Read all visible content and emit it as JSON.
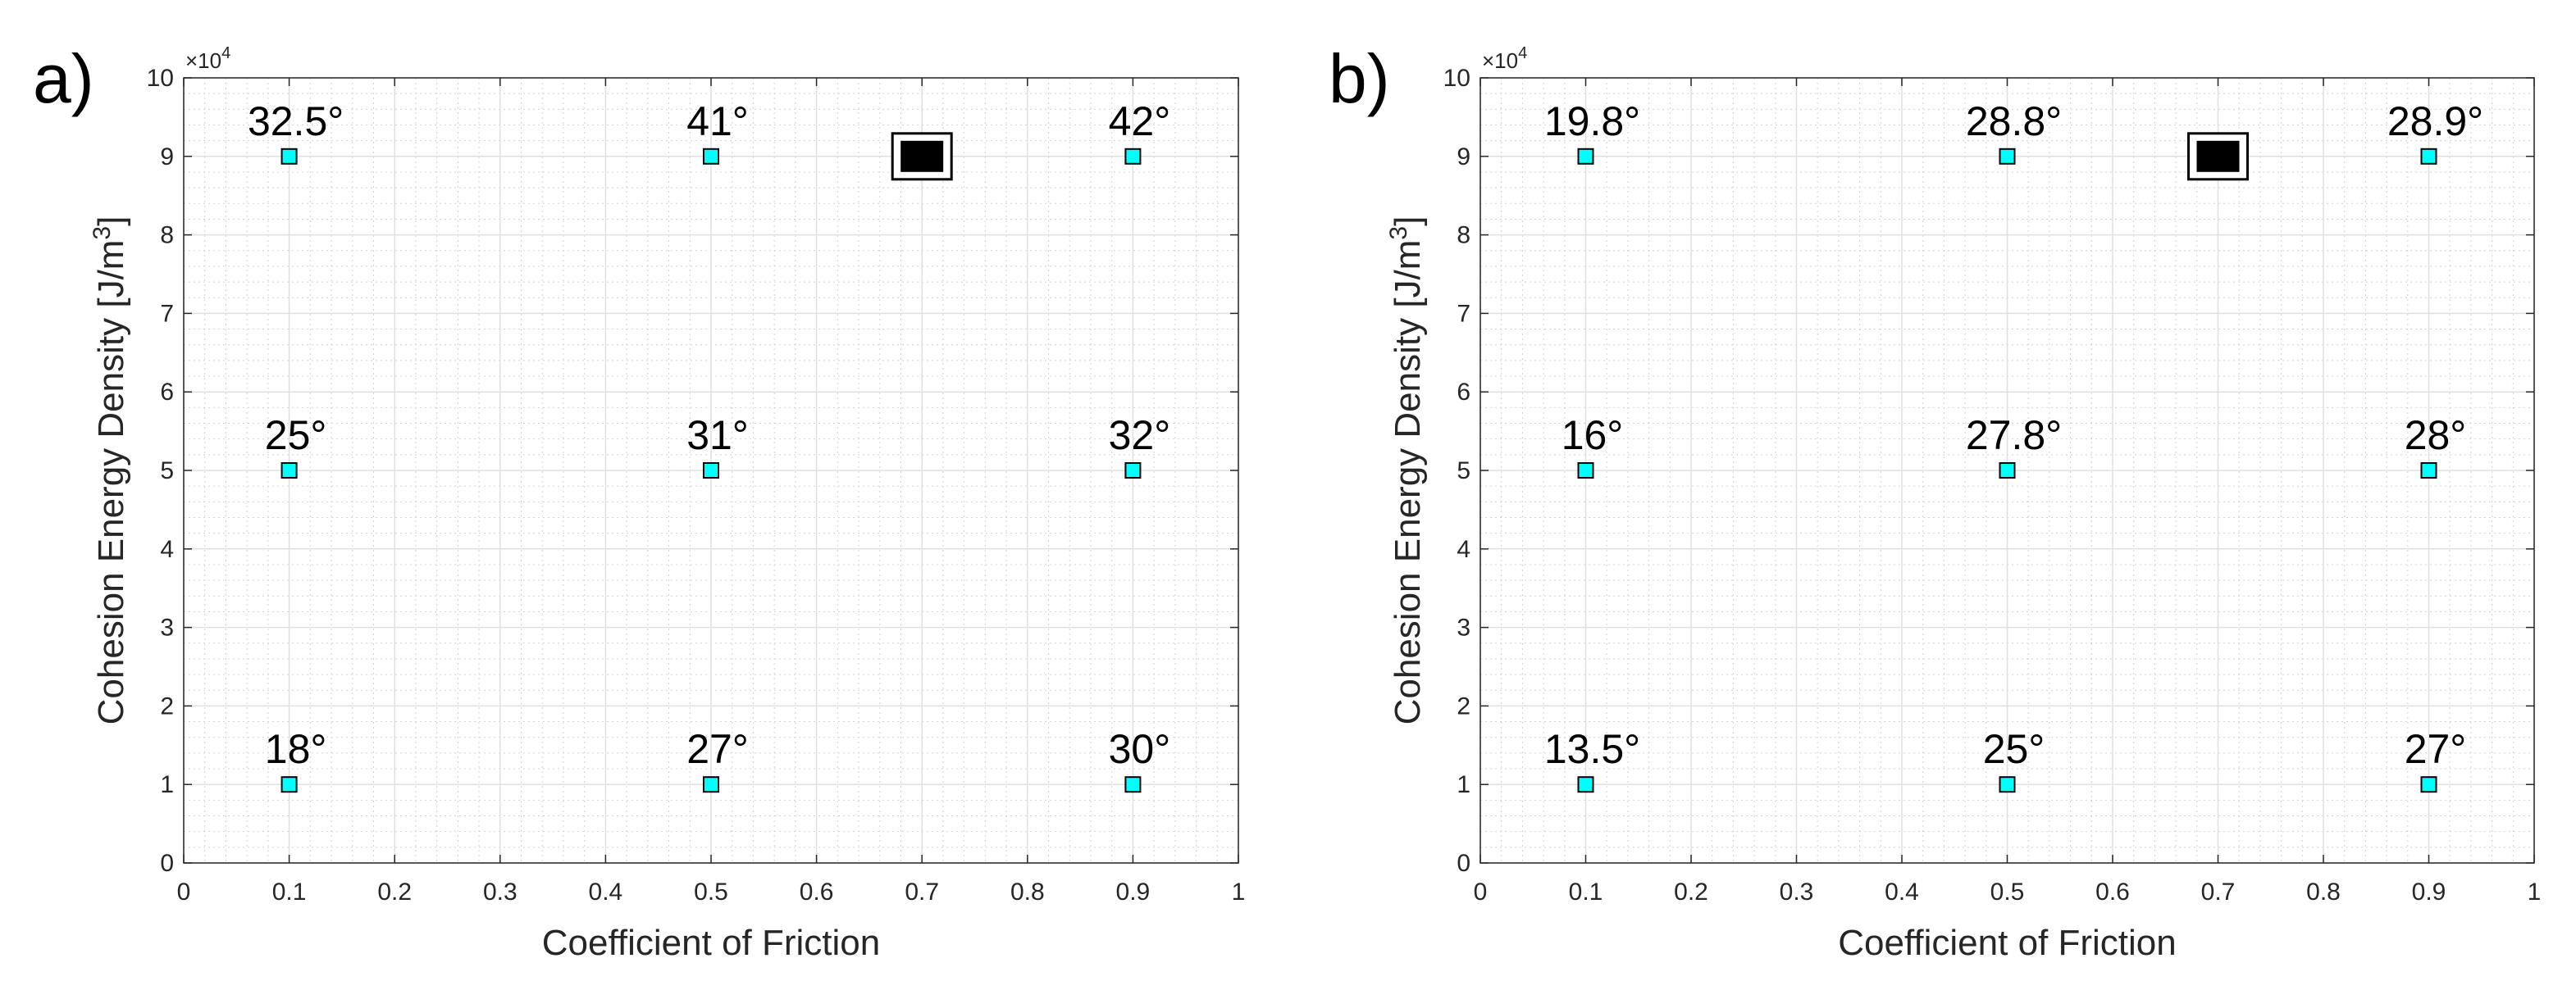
{
  "chart_data": [
    {
      "type": "scatter",
      "panel_label": "a)",
      "xlabel": "Coefficient of Friction",
      "ylabel_main": "Cohesion Energy Density [J/m",
      "ylabel_sup": "3",
      "ylabel_end": "]",
      "y_exponent_base": "×10",
      "y_exponent_power": "4",
      "xlim": [
        0,
        1
      ],
      "ylim": [
        0,
        10
      ],
      "xticks": [
        "0",
        "0.1",
        "0.2",
        "0.3",
        "0.4",
        "0.5",
        "0.6",
        "0.7",
        "0.8",
        "0.9",
        "1"
      ],
      "yticks": [
        "0",
        "1",
        "2",
        "3",
        "4",
        "5",
        "6",
        "7",
        "8",
        "9",
        "10"
      ],
      "grid": true,
      "points": [
        {
          "x": 0.1,
          "y": 1,
          "label": "18°"
        },
        {
          "x": 0.5,
          "y": 1,
          "label": "27°"
        },
        {
          "x": 0.9,
          "y": 1,
          "label": "30°"
        },
        {
          "x": 0.1,
          "y": 5,
          "label": "25°"
        },
        {
          "x": 0.5,
          "y": 5,
          "label": "31°"
        },
        {
          "x": 0.9,
          "y": 5,
          "label": "32°"
        },
        {
          "x": 0.1,
          "y": 9,
          "label": "32.5°"
        },
        {
          "x": 0.5,
          "y": 9,
          "label": "41°"
        },
        {
          "x": 0.9,
          "y": 9,
          "label": "42°"
        }
      ],
      "reference_marker": {
        "x": 0.7,
        "y": 9
      },
      "point_color": "#00ffff",
      "marker_color": "#000000"
    },
    {
      "type": "scatter",
      "panel_label": "b)",
      "xlabel": "Coefficient of Friction",
      "ylabel_main": "Cohesion Energy Density [J/m",
      "ylabel_sup": "3",
      "ylabel_end": "]",
      "y_exponent_base": "×10",
      "y_exponent_power": "4",
      "xlim": [
        0,
        1
      ],
      "ylim": [
        0,
        10
      ],
      "xticks": [
        "0",
        "0.1",
        "0.2",
        "0.3",
        "0.4",
        "0.5",
        "0.6",
        "0.7",
        "0.8",
        "0.9",
        "1"
      ],
      "yticks": [
        "0",
        "1",
        "2",
        "3",
        "4",
        "5",
        "6",
        "7",
        "8",
        "9",
        "10"
      ],
      "grid": true,
      "points": [
        {
          "x": 0.1,
          "y": 1,
          "label": "13.5°"
        },
        {
          "x": 0.5,
          "y": 1,
          "label": "25°"
        },
        {
          "x": 0.9,
          "y": 1,
          "label": "27°"
        },
        {
          "x": 0.1,
          "y": 5,
          "label": "16°"
        },
        {
          "x": 0.5,
          "y": 5,
          "label": "27.8°"
        },
        {
          "x": 0.9,
          "y": 5,
          "label": "28°"
        },
        {
          "x": 0.1,
          "y": 9,
          "label": "19.8°"
        },
        {
          "x": 0.5,
          "y": 9,
          "label": "28.8°"
        },
        {
          "x": 0.9,
          "y": 9,
          "label": "28.9°"
        }
      ],
      "reference_marker": {
        "x": 0.7,
        "y": 9
      },
      "point_color": "#00ffff",
      "marker_color": "#000000"
    }
  ]
}
